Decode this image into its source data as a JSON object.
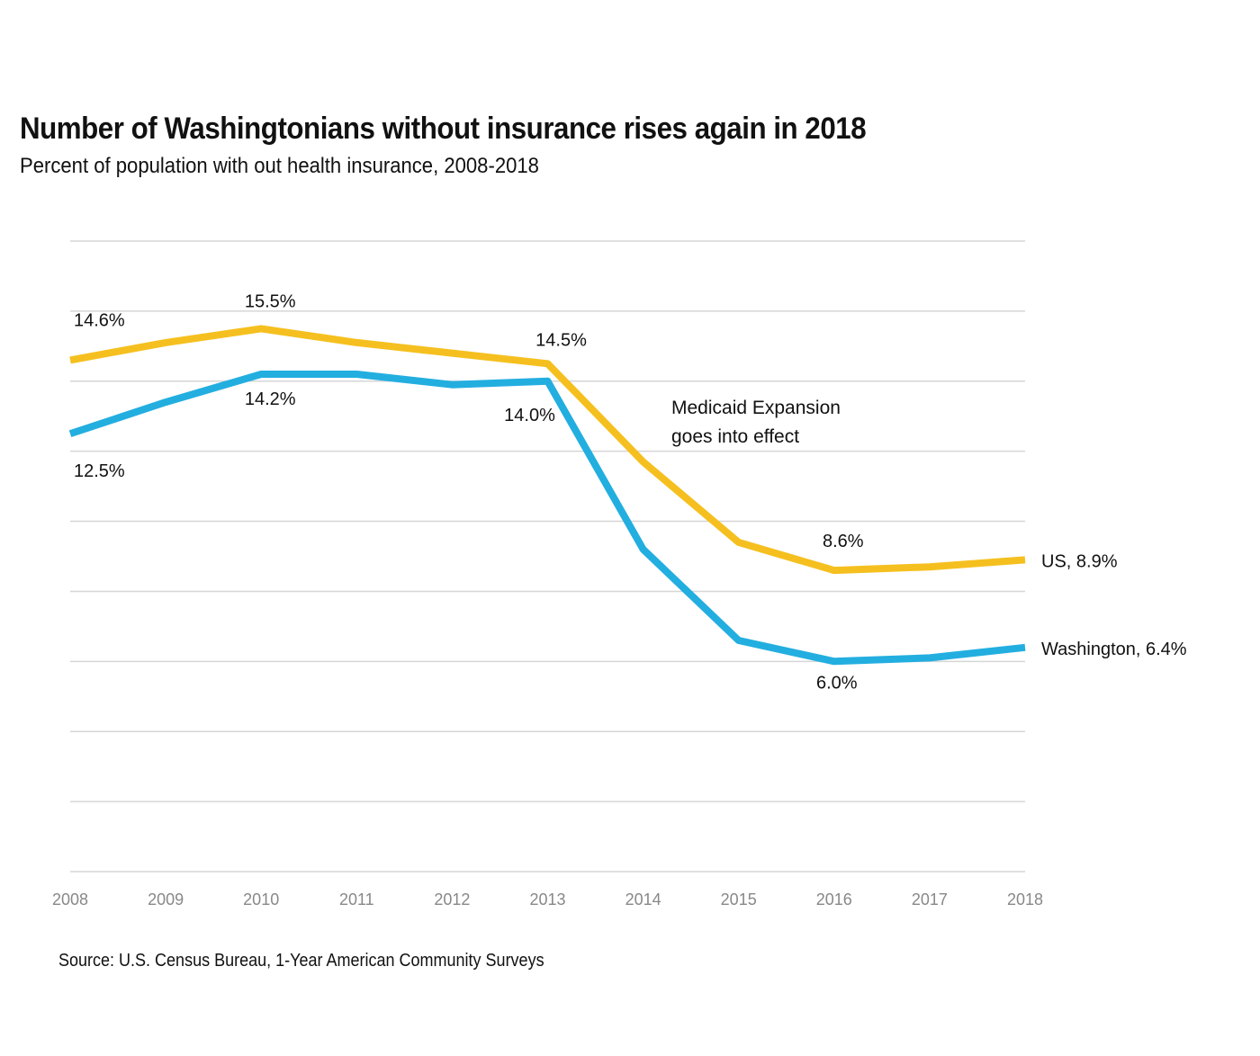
{
  "chart_data": {
    "type": "line",
    "title": "Number of Washingtonians without insurance rises again in 2018",
    "subtitle": "Percent of population with out health insurance, 2008-2018",
    "xlabel": "",
    "ylabel": "",
    "x": [
      2008,
      2009,
      2010,
      2011,
      2012,
      2013,
      2014,
      2015,
      2016,
      2017,
      2018
    ],
    "x_tick_labels": [
      "2008",
      "2009",
      "2010",
      "2011",
      "2012",
      "2013",
      "2014",
      "2015",
      "2016",
      "2017",
      "2018"
    ],
    "ylim": [
      0,
      18
    ],
    "y_gridlines": [
      0,
      2,
      4,
      6,
      8,
      10,
      12,
      14,
      16,
      18
    ],
    "y_tick_labels_shown": false,
    "grid": true,
    "series": [
      {
        "name": "US",
        "color": "#f5c01f",
        "values": [
          14.6,
          15.1,
          15.5,
          15.1,
          14.8,
          14.5,
          11.7,
          9.4,
          8.6,
          8.7,
          8.9
        ],
        "end_label": "US, 8.9%",
        "data_labels": [
          {
            "year": 2008,
            "text": "14.6%"
          },
          {
            "year": 2010,
            "text": "15.5%"
          },
          {
            "year": 2013,
            "text": "14.5%"
          },
          {
            "year": 2016,
            "text": "8.6%"
          }
        ]
      },
      {
        "name": "Washington",
        "color": "#23aee0",
        "values": [
          12.5,
          13.4,
          14.2,
          14.2,
          13.9,
          14.0,
          9.2,
          6.6,
          6.0,
          6.1,
          6.4
        ],
        "end_label": "Washington, 6.4%",
        "data_labels": [
          {
            "year": 2008,
            "text": "12.5%"
          },
          {
            "year": 2010,
            "text": "14.2%"
          },
          {
            "year": 2013,
            "text": "14.0%"
          },
          {
            "year": 2016,
            "text": "6.0%"
          }
        ]
      }
    ],
    "annotations": [
      {
        "text_lines": [
          "Medicaid Expansion",
          "goes into effect"
        ],
        "near_year": 2014
      }
    ],
    "legend": "none (direct line-end labels, right)",
    "source": "Source: U.S. Census Bureau, 1-Year American Community Surveys"
  }
}
